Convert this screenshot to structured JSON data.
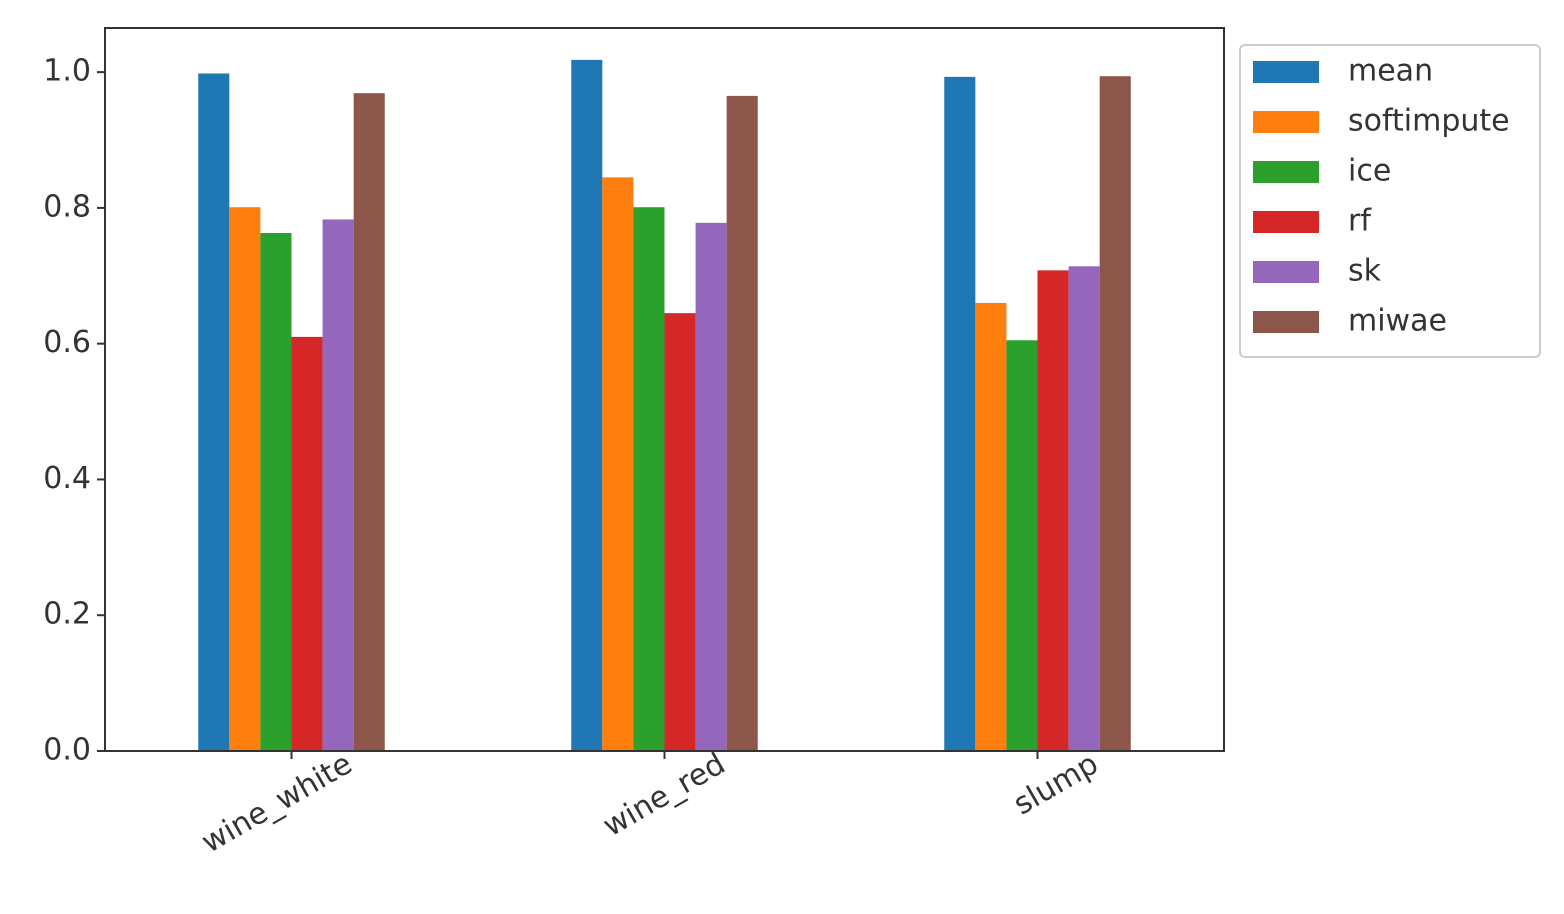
{
  "chart_data": {
    "type": "bar",
    "categories": [
      "wine_white",
      "wine_red",
      "slump"
    ],
    "series": [
      {
        "name": "mean",
        "color": "#1f77b4",
        "values": [
          0.998,
          1.018,
          0.993
        ]
      },
      {
        "name": "softimpute",
        "color": "#ff7f0e",
        "values": [
          0.801,
          0.845,
          0.66
        ]
      },
      {
        "name": "ice",
        "color": "#2ca02c",
        "values": [
          0.763,
          0.801,
          0.605
        ]
      },
      {
        "name": "rf",
        "color": "#d62728",
        "values": [
          0.61,
          0.645,
          0.708
        ]
      },
      {
        "name": "sk",
        "color": "#9467bd",
        "values": [
          0.783,
          0.778,
          0.714
        ]
      },
      {
        "name": "miwae",
        "color": "#8c564b",
        "values": [
          0.969,
          0.965,
          0.994
        ]
      }
    ],
    "ylim": [
      0,
      1.065
    ],
    "yticks": [
      {
        "value": 0,
        "label": "0.0"
      },
      0.2,
      0.4,
      0.6,
      0.8,
      {
        "value": 1,
        "label": "1.0"
      }
    ],
    "legend": "outside-upper-right"
  }
}
